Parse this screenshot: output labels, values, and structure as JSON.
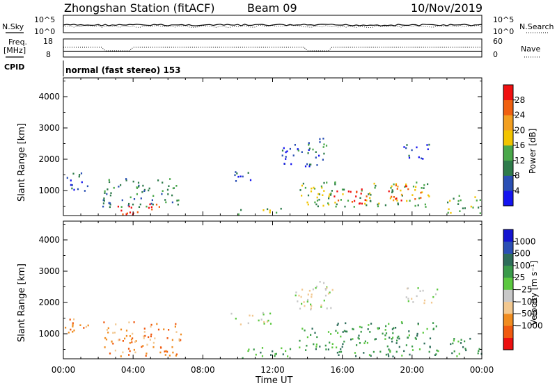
{
  "header": {
    "station": "Zhongshan Station (fitACF)",
    "beam": "Beam 09",
    "date": "10/Nov/2019"
  },
  "noise_panel": {
    "left_label": "N.Sky",
    "right_label": "N.Search",
    "left_ticks": [
      "10^5",
      "10^0"
    ],
    "right_ticks": [
      "10^5",
      "10^0"
    ]
  },
  "freq_panel": {
    "left_label_1": "Freq.",
    "left_label_2": "[MHz]",
    "right_label": "Nave",
    "left_ticks": [
      "18",
      "8"
    ],
    "right_ticks": [
      "60",
      "0"
    ],
    "cpid_label": "CPID",
    "cpid_value": "normal (fast stereo) 153"
  },
  "colors": {
    "power": [
      "#1414f0",
      "#2a4fb4",
      "#2e7b4b",
      "#4aa84a",
      "#f2c400",
      "#f29f20",
      "#f06010",
      "#f01010"
    ],
    "velocity": [
      "#ec1010",
      "#f05a10",
      "#f08c20",
      "#f2c890",
      "#c8c8c8",
      "#5cc840",
      "#3a9a4a",
      "#2e6d5a",
      "#2b4fb4",
      "#1414d0"
    ]
  },
  "chart_data": [
    {
      "type": "heatmap",
      "panel": "power",
      "ylabel": "Slant Range [km]",
      "ylim": [
        200,
        4600
      ],
      "yticks": [
        "1000",
        "2000",
        "3000",
        "4000"
      ],
      "xlim": [
        0,
        24
      ],
      "colorbar_label": "Power [dB]",
      "colorbar_ticks": [
        "4",
        "8",
        "12",
        "16",
        "20",
        "24",
        "28"
      ],
      "echo_regions": [
        {
          "t": [
            0.0,
            1.4
          ],
          "r": [
            1000,
            1600
          ],
          "level": 1
        },
        {
          "t": [
            2.2,
            6.8
          ],
          "r": [
            500,
            1400
          ],
          "level": 2
        },
        {
          "t": [
            3.0,
            5.5
          ],
          "r": [
            200,
            600
          ],
          "level": 7
        },
        {
          "t": [
            9.6,
            11.2
          ],
          "r": [
            1300,
            1650
          ],
          "level": 1
        },
        {
          "t": [
            10.0,
            12.5
          ],
          "r": [
            250,
            450
          ],
          "level": 3
        },
        {
          "t": [
            12.2,
            15.0
          ],
          "r": [
            1800,
            2400
          ],
          "level": 1
        },
        {
          "t": [
            13.2,
            15.2
          ],
          "r": [
            2300,
            2700
          ],
          "level": 2
        },
        {
          "t": [
            13.5,
            21.0
          ],
          "r": [
            500,
            1300
          ],
          "level": 3
        },
        {
          "t": [
            15.5,
            17.5
          ],
          "r": [
            600,
            1100
          ],
          "level": 7
        },
        {
          "t": [
            18.5,
            20.5
          ],
          "r": [
            700,
            1200
          ],
          "level": 6
        },
        {
          "t": [
            19.5,
            21.0
          ],
          "r": [
            2000,
            2500
          ],
          "level": 1
        },
        {
          "t": [
            22.0,
            24.0
          ],
          "r": [
            300,
            900
          ],
          "level": 3
        }
      ]
    },
    {
      "type": "heatmap",
      "panel": "velocity",
      "xlabel": "Time UT",
      "ylabel": "Slant Range [km]",
      "ylim": [
        200,
        4600
      ],
      "yticks": [
        "1000",
        "2000",
        "3000",
        "4000"
      ],
      "xlim": [
        0,
        24
      ],
      "xticks": [
        "00:00",
        "04:00",
        "08:00",
        "12:00",
        "16:00",
        "20:00",
        "00:00"
      ],
      "colorbar_label": "Velocity [m s⁻¹]",
      "colorbar_ticks": [
        "1000",
        "500",
        "100",
        "25",
        "−25",
        "−100",
        "−500",
        "−1000"
      ],
      "echo_regions": [
        {
          "t": [
            0.0,
            1.4
          ],
          "r": [
            1000,
            1600
          ],
          "level": 2
        },
        {
          "t": [
            2.2,
            6.8
          ],
          "r": [
            300,
            1400
          ],
          "level": 2
        },
        {
          "t": [
            9.6,
            12.0
          ],
          "r": [
            1300,
            1700
          ],
          "level": 4
        },
        {
          "t": [
            10.0,
            13.0
          ],
          "r": [
            250,
            600
          ],
          "level": 6
        },
        {
          "t": [
            13.0,
            15.5
          ],
          "r": [
            1800,
            2700
          ],
          "level": 4
        },
        {
          "t": [
            13.5,
            16.0
          ],
          "r": [
            500,
            1200
          ],
          "level": 6
        },
        {
          "t": [
            15.5,
            21.5
          ],
          "r": [
            300,
            1400
          ],
          "level": 6
        },
        {
          "t": [
            19.5,
            21.5
          ],
          "r": [
            2000,
            2500
          ],
          "level": 4
        },
        {
          "t": [
            22.0,
            24.0
          ],
          "r": [
            300,
            900
          ],
          "level": 6
        }
      ]
    }
  ]
}
